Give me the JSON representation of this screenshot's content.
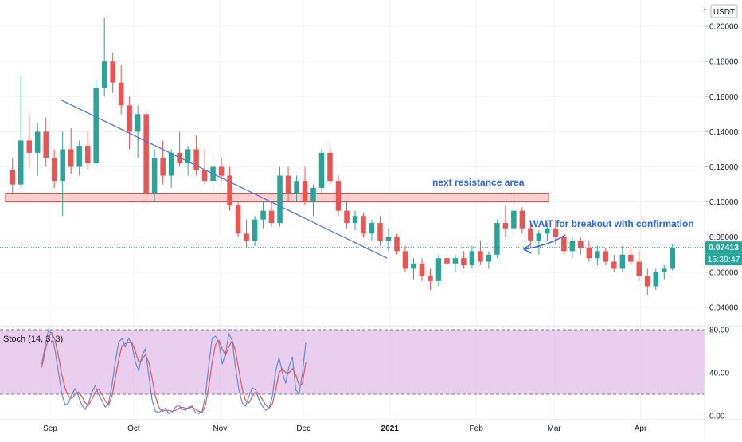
{
  "colors": {
    "up": "#26a69a",
    "down": "#ef5350",
    "trendline": "#4a78d8",
    "annotation_text": "#2962ff",
    "resistance_fill": "#fcc4c4",
    "resistance_border": "#e53935",
    "price_line": "#26a69a",
    "stoch_k": "#5b8fd8",
    "stoch_d": "#ef5350",
    "stoch_band": "#e1bee7",
    "axis_text": "#131722",
    "grid": "#f0f3fa"
  },
  "chart_data": [
    {
      "type": "candlestick",
      "currency_label": "USDT",
      "ylim": [
        0.03,
        0.215
      ],
      "y_ticks": [
        "0.20000",
        "0.18000",
        "0.16000",
        "0.14000",
        "0.12000",
        "0.10000",
        "0.08000",
        "0.06000",
        "0.04000"
      ],
      "x_ticks": [
        "Sep",
        "Oct",
        "Nov",
        "Dec",
        "2021",
        "Feb",
        "Mar",
        "Apr"
      ],
      "x_tick_dates": [
        "2020-09-01",
        "2020-10-01",
        "2020-11-01",
        "2020-12-01",
        "2021-01-01",
        "2021-02-01",
        "2021-03-01",
        "2021-04-01"
      ],
      "xlim": [
        "2020-08-14",
        "2021-04-24"
      ],
      "first_candle_date": "2020-08-17",
      "last_price": "0.07413",
      "last_price_value": 0.07413,
      "countdown": "15:39:47",
      "candles": [
        [
          0.118,
          0.125,
          0.105,
          0.11
        ],
        [
          0.11,
          0.172,
          0.108,
          0.135
        ],
        [
          0.135,
          0.15,
          0.12,
          0.128
        ],
        [
          0.128,
          0.145,
          0.115,
          0.14
        ],
        [
          0.14,
          0.148,
          0.12,
          0.125
        ],
        [
          0.125,
          0.13,
          0.108,
          0.112
        ],
        [
          0.112,
          0.14,
          0.092,
          0.13
        ],
        [
          0.13,
          0.142,
          0.116,
          0.12
        ],
        [
          0.12,
          0.135,
          0.115,
          0.132
        ],
        [
          0.132,
          0.14,
          0.118,
          0.122
        ],
        [
          0.122,
          0.17,
          0.12,
          0.165
        ],
        [
          0.165,
          0.205,
          0.16,
          0.18
        ],
        [
          0.18,
          0.185,
          0.162,
          0.168
        ],
        [
          0.168,
          0.178,
          0.15,
          0.155
        ],
        [
          0.155,
          0.16,
          0.13,
          0.14
        ],
        [
          0.14,
          0.155,
          0.125,
          0.15
        ],
        [
          0.15,
          0.152,
          0.098,
          0.105
        ],
        [
          0.105,
          0.13,
          0.1,
          0.125
        ],
        [
          0.125,
          0.135,
          0.11,
          0.115
        ],
        [
          0.115,
          0.13,
          0.108,
          0.128
        ],
        [
          0.128,
          0.14,
          0.12,
          0.122
        ],
        [
          0.122,
          0.132,
          0.115,
          0.13
        ],
        [
          0.13,
          0.138,
          0.115,
          0.118
        ],
        [
          0.118,
          0.13,
          0.11,
          0.112
        ],
        [
          0.112,
          0.125,
          0.105,
          0.12
        ],
        [
          0.12,
          0.125,
          0.112,
          0.115
        ],
        [
          0.115,
          0.12,
          0.095,
          0.098
        ],
        [
          0.098,
          0.1,
          0.08,
          0.082
        ],
        [
          0.082,
          0.09,
          0.074,
          0.078
        ],
        [
          0.078,
          0.092,
          0.075,
          0.09
        ],
        [
          0.09,
          0.1,
          0.085,
          0.095
        ],
        [
          0.095,
          0.1,
          0.086,
          0.088
        ],
        [
          0.088,
          0.12,
          0.086,
          0.115
        ],
        [
          0.115,
          0.12,
          0.1,
          0.105
        ],
        [
          0.105,
          0.115,
          0.1,
          0.112
        ],
        [
          0.112,
          0.12,
          0.098,
          0.1
        ],
        [
          0.1,
          0.11,
          0.092,
          0.108
        ],
        [
          0.108,
          0.13,
          0.105,
          0.128
        ],
        [
          0.128,
          0.132,
          0.11,
          0.112
        ],
        [
          0.112,
          0.115,
          0.092,
          0.095
        ],
        [
          0.095,
          0.1,
          0.085,
          0.088
        ],
        [
          0.088,
          0.095,
          0.084,
          0.092
        ],
        [
          0.092,
          0.094,
          0.08,
          0.082
        ],
        [
          0.082,
          0.09,
          0.078,
          0.088
        ],
        [
          0.088,
          0.092,
          0.075,
          0.078
        ],
        [
          0.078,
          0.085,
          0.072,
          0.08
        ],
        [
          0.08,
          0.082,
          0.07,
          0.072
        ],
        [
          0.072,
          0.075,
          0.06,
          0.062
        ],
        [
          0.062,
          0.068,
          0.056,
          0.065
        ],
        [
          0.065,
          0.068,
          0.055,
          0.058
        ],
        [
          0.058,
          0.062,
          0.05,
          0.055
        ],
        [
          0.055,
          0.07,
          0.052,
          0.068
        ],
        [
          0.068,
          0.075,
          0.062,
          0.065
        ],
        [
          0.065,
          0.07,
          0.06,
          0.068
        ],
        [
          0.068,
          0.072,
          0.062,
          0.064
        ],
        [
          0.064,
          0.075,
          0.062,
          0.072
        ],
        [
          0.072,
          0.078,
          0.064,
          0.066
        ],
        [
          0.066,
          0.072,
          0.062,
          0.07
        ],
        [
          0.07,
          0.09,
          0.068,
          0.088
        ],
        [
          0.088,
          0.098,
          0.08,
          0.085
        ],
        [
          0.085,
          0.108,
          0.082,
          0.095
        ],
        [
          0.095,
          0.097,
          0.082,
          0.085
        ],
        [
          0.085,
          0.088,
          0.074,
          0.078
        ],
        [
          0.078,
          0.084,
          0.07,
          0.082
        ],
        [
          0.082,
          0.088,
          0.078,
          0.085
        ],
        [
          0.085,
          0.09,
          0.076,
          0.08
        ],
        [
          0.08,
          0.082,
          0.07,
          0.072
        ],
        [
          0.072,
          0.08,
          0.068,
          0.078
        ],
        [
          0.078,
          0.08,
          0.07,
          0.074
        ],
        [
          0.074,
          0.078,
          0.066,
          0.068
        ],
        [
          0.068,
          0.075,
          0.064,
          0.072
        ],
        [
          0.072,
          0.074,
          0.064,
          0.066
        ],
        [
          0.066,
          0.07,
          0.06,
          0.062
        ],
        [
          0.062,
          0.075,
          0.06,
          0.07
        ],
        [
          0.07,
          0.076,
          0.064,
          0.066
        ],
        [
          0.066,
          0.072,
          0.055,
          0.058
        ],
        [
          0.058,
          0.062,
          0.047,
          0.052
        ],
        [
          0.052,
          0.062,
          0.05,
          0.06
        ],
        [
          0.06,
          0.064,
          0.056,
          0.062
        ],
        [
          0.062,
          0.076,
          0.061,
          0.074
        ]
      ]
    },
    {
      "type": "line",
      "label": "Stoch (14, 3, 3)",
      "ylim": [
        -3,
        83
      ],
      "y_ticks": [
        "80.00",
        "40.00",
        "0.00"
      ],
      "bands": [
        80,
        20
      ],
      "k": [
        48,
        65,
        80,
        76,
        60,
        40,
        20,
        10,
        12,
        20,
        25,
        18,
        10,
        6,
        12,
        22,
        28,
        20,
        14,
        8,
        12,
        28,
        50,
        68,
        72,
        64,
        72,
        66,
        50,
        42,
        56,
        62,
        38,
        15,
        4,
        3,
        5,
        7,
        2,
        3,
        8,
        10,
        6,
        5,
        8,
        9,
        3,
        2,
        4,
        20,
        48,
        72,
        74,
        68,
        48,
        58,
        76,
        70,
        44,
        24,
        12,
        9,
        18,
        26,
        24,
        15,
        9,
        5,
        7,
        18,
        42,
        54,
        40,
        30,
        46,
        55,
        24,
        20,
        40,
        68
      ],
      "d": [
        45,
        60,
        73,
        77,
        70,
        55,
        38,
        25,
        18,
        16,
        20,
        22,
        18,
        12,
        10,
        15,
        22,
        25,
        20,
        14,
        10,
        18,
        35,
        52,
        65,
        67,
        68,
        68,
        60,
        50,
        52,
        57,
        50,
        35,
        18,
        8,
        4,
        5,
        5,
        4,
        5,
        7,
        8,
        7,
        7,
        8,
        6,
        4,
        3,
        10,
        28,
        50,
        66,
        70,
        62,
        56,
        64,
        70,
        60,
        42,
        25,
        14,
        12,
        18,
        22,
        21,
        15,
        10,
        7,
        11,
        24,
        40,
        44,
        40,
        40,
        44,
        38,
        28,
        30,
        50
      ]
    }
  ],
  "annotations": {
    "resistance_label": "next resistance area",
    "breakout_label": "WAIT for breakout with confirmation",
    "resistance_zone": [
      0.1,
      0.105
    ],
    "resistance_zone_dates": [
      "2020-08-16",
      "2021-02-27"
    ],
    "trendline": {
      "from_date": "2020-09-05",
      "from_value": 0.158,
      "to_date": "2020-12-31",
      "to_value": 0.068
    }
  }
}
